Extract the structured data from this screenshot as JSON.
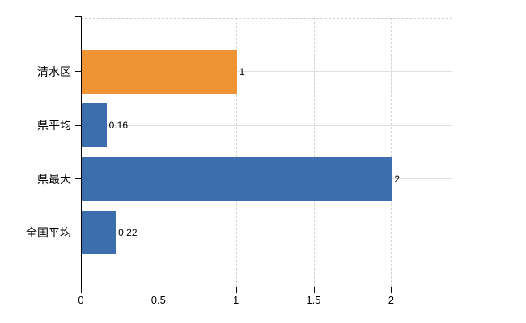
{
  "chart_data": {
    "type": "bar",
    "orientation": "horizontal",
    "title": "",
    "xlabel": "",
    "ylabel": "",
    "categories": [
      "清水区",
      "県平均",
      "県最大",
      "全国平均"
    ],
    "values": [
      1,
      0.16,
      2,
      0.22
    ],
    "value_labels": [
      "1",
      "0.16",
      "2",
      "0.22"
    ],
    "bar_colors": [
      "#ef9434",
      "#3c6eae",
      "#3c6eae",
      "#3c6eae"
    ],
    "x_ticks": [
      0,
      0.5,
      1,
      1.5,
      2
    ],
    "x_tick_labels": [
      "0",
      "0.5",
      "1",
      "1.5",
      "2"
    ],
    "xlim": [
      0,
      2.4
    ],
    "grid": {
      "vertical": "dashed",
      "horizontal": "solid-at-category-centers",
      "top_border": "dashed"
    },
    "legend": "none",
    "background_color": "#ffffff",
    "axis_color": "#000000",
    "horizontal_gridline_color": "#dde2dc",
    "vertical_gridline_color": "#d2d2d6"
  }
}
